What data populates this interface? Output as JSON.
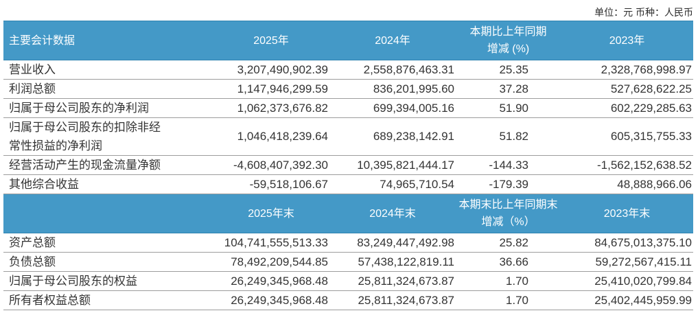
{
  "page": {
    "unit_note": "单位：元 币种：人民币"
  },
  "colors": {
    "header_bg": "#4499C7",
    "header_border": "#2E82B0",
    "header_text": "#FFFFFF",
    "row_border": "#9C9C9C",
    "body_text": "#333333"
  },
  "annual": {
    "headers": {
      "col1": "主要会计数据",
      "col2": "2025年",
      "col3": "2024年",
      "col4_line1": "本期比上年同期",
      "col4_line2": "增减 (%)",
      "col5": "2023年"
    },
    "rows": [
      {
        "label": "营业收入",
        "y2025": "3,207,490,902.39",
        "y2024": "2,558,876,463.31",
        "change": "25.35",
        "y2023": "2,328,768,998.97"
      },
      {
        "label": "利润总额",
        "y2025": "1,147,946,299.59",
        "y2024": "836,201,995.60",
        "change": "37.28",
        "y2023": "527,628,622.25"
      },
      {
        "label": "归属于母公司股东的净利润",
        "y2025": "1,062,373,676.82",
        "y2024": "699,394,005.16",
        "change": "51.90",
        "y2023": "602,229,285.63"
      },
      {
        "label": "归属于母公司股东的扣除非经常性损益的净利润",
        "y2025": "1,046,418,239.64",
        "y2024": "689,238,142.91",
        "change": "51.82",
        "y2023": "605,315,755.33"
      },
      {
        "label": "经营活动产生的现金流量净额",
        "y2025": "-4,608,407,392.30",
        "y2024": "10,395,821,444.17",
        "change": "-144.33",
        "y2023": "-1,562,152,638.52"
      },
      {
        "label": "其他综合收益",
        "y2025": "-59,518,106.67",
        "y2024": "74,965,710.54",
        "change": "-179.39",
        "y2023": "48,888,966.06"
      }
    ]
  },
  "period_end": {
    "headers": {
      "col1": "",
      "col2": "2025年末",
      "col3": "2024年末",
      "col4_line1": "本期末比上年同期末",
      "col4_line2": "增减（%）",
      "col5": "2023年末"
    },
    "rows": [
      {
        "label": "资产总额",
        "y2025": "104,741,555,513.33",
        "y2024": "83,249,447,492.98",
        "change": "25.82",
        "y2023": "84,675,013,375.10"
      },
      {
        "label": "负债总额",
        "y2025": "78,492,209,544.85",
        "y2024": "57,438,122,819.11",
        "change": "36.66",
        "y2023": "59,272,567,415.11"
      },
      {
        "label": "归属于母公司股东的权益",
        "y2025": "26,249,345,968.48",
        "y2024": "25,811,324,673.87",
        "change": "1.70",
        "y2023": "25,410,020,799.84"
      },
      {
        "label": "所有者权益总额",
        "y2025": "26,249,345,968.48",
        "y2024": "25,811,324,673.87",
        "change": "1.70",
        "y2023": "25,402,445,959.99"
      }
    ]
  }
}
